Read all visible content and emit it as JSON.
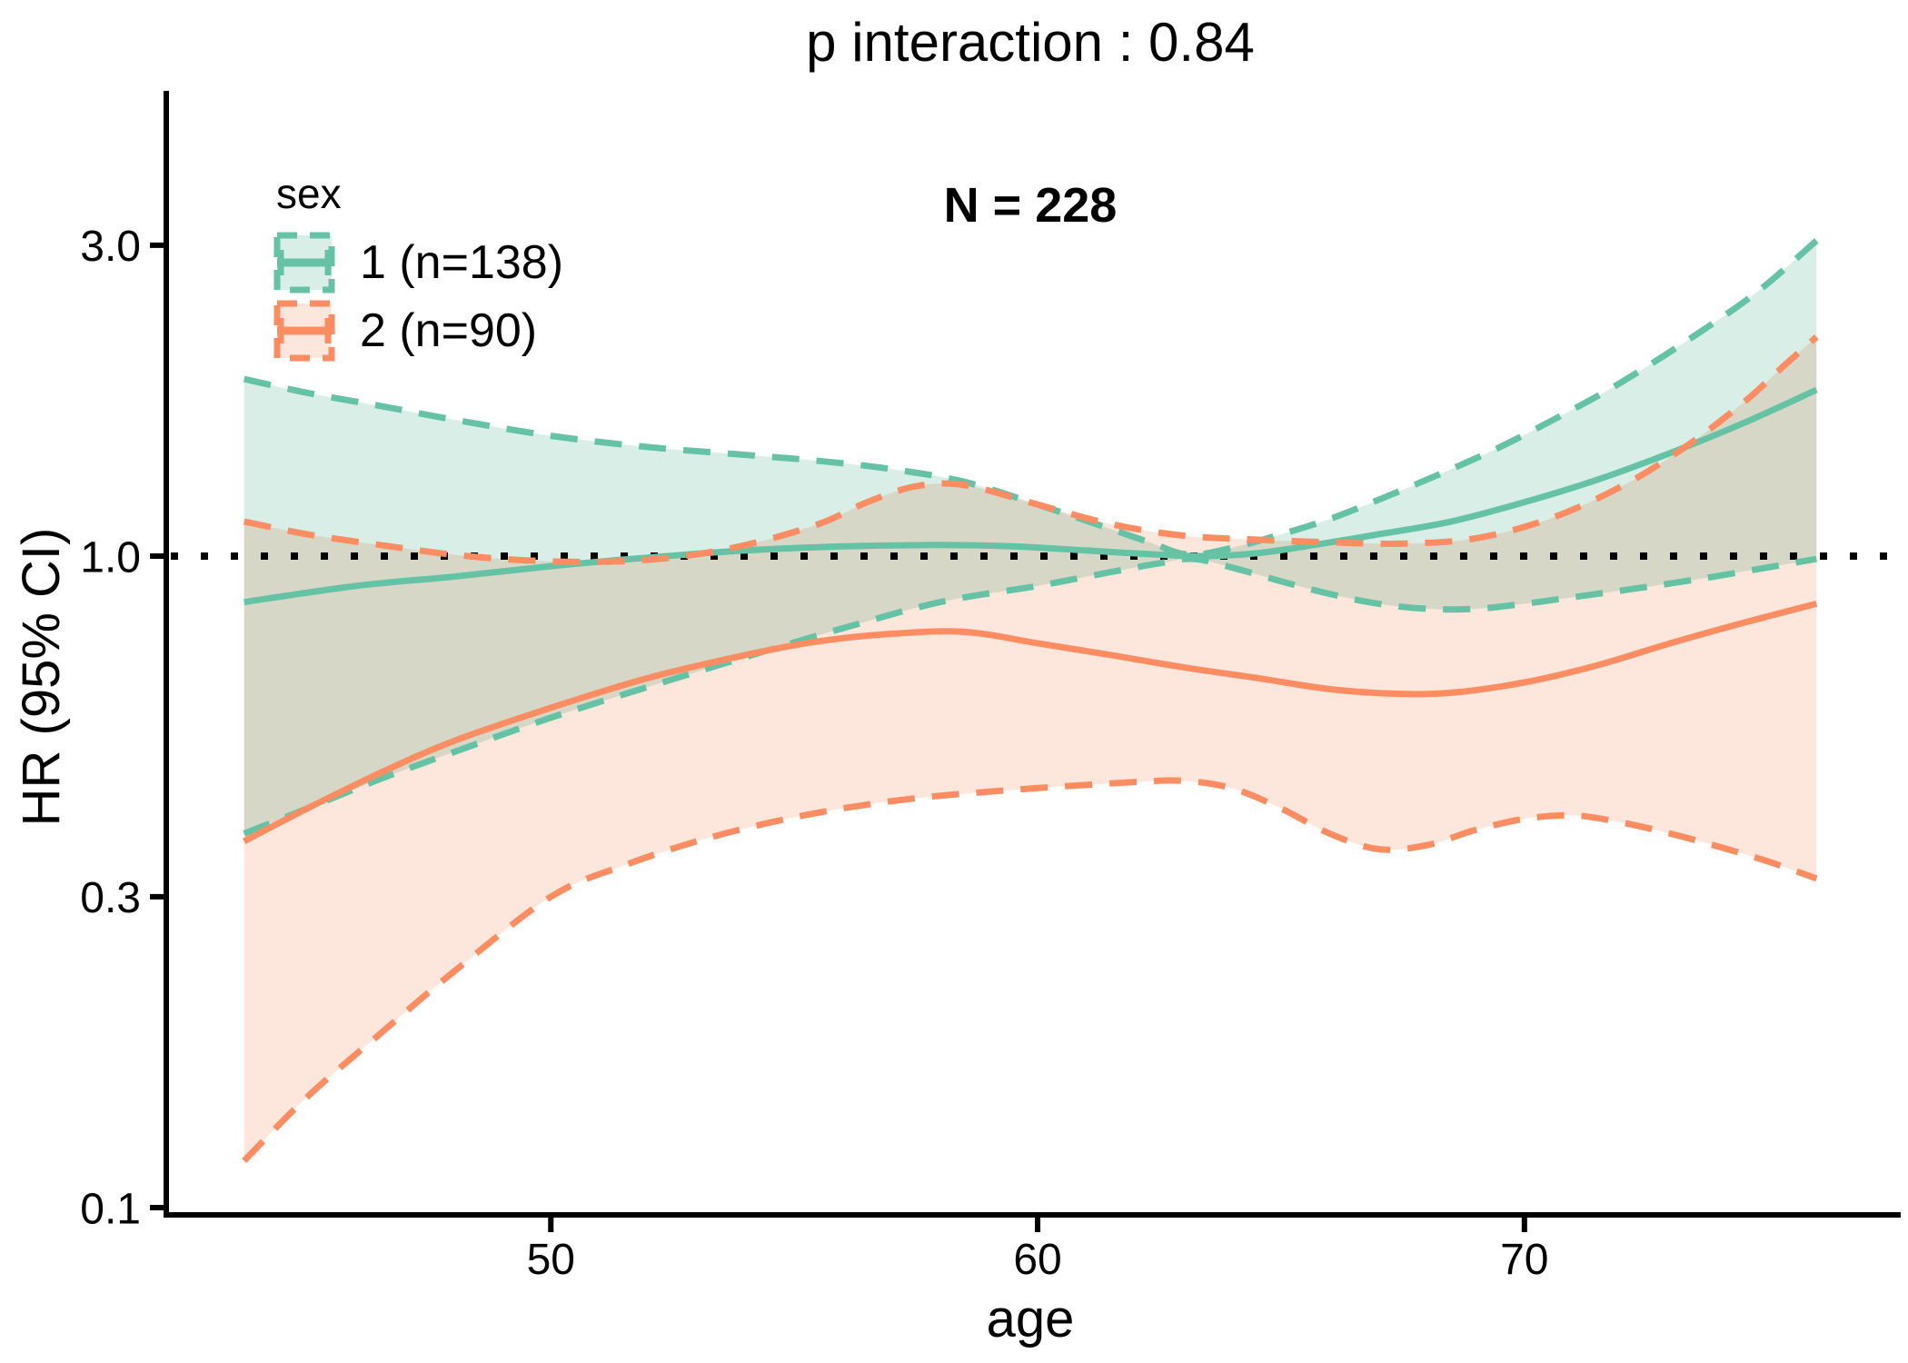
{
  "chart_data": {
    "type": "line",
    "title": "p interaction : 0.84",
    "annotation": "N = 228",
    "xlabel": "age",
    "ylabel": "HR (95% CI)",
    "y_scale": "log10",
    "grid": "off",
    "x_panel_range": [
      42.1,
      77.6
    ],
    "y_panel_range": [
      0.0975,
      5.13
    ],
    "x_data_range": [
      43.7,
      76.0
    ],
    "reference_line_y": 1.0,
    "reference_line_color": "#000000",
    "axis_color": "#000000",
    "x_ticks": [
      {
        "label": "50",
        "value": 50
      },
      {
        "label": "60",
        "value": 60
      },
      {
        "label": "70",
        "value": 70
      }
    ],
    "y_ticks": [
      {
        "label": "3.0",
        "value": 3.0
      },
      {
        "label": "1.0",
        "value": 1.0
      },
      {
        "label": "0.3",
        "value": 0.3
      },
      {
        "label": "0.1",
        "value": 0.1
      }
    ],
    "legend": {
      "title": "sex",
      "position": "top-left-inside",
      "entries": [
        {
          "label": "1 (n=138)",
          "n": 138,
          "color": "#66C2A5",
          "fill": "#D9EEE6"
        },
        {
          "label": "2 (n=90)",
          "n": 90,
          "color": "#FC8D62",
          "fill": "#FDE7DD"
        }
      ]
    },
    "series": [
      {
        "name": "1 (n=138)",
        "group": "sex=1",
        "color": "#66C2A5",
        "fill": "#D9EEE6",
        "fit": [
          [
            43.7,
            0.85
          ],
          [
            46,
            0.9
          ],
          [
            48,
            0.93
          ],
          [
            50,
            0.965
          ],
          [
            52,
            0.995
          ],
          [
            54,
            1.02
          ],
          [
            56,
            1.035
          ],
          [
            58,
            1.04
          ],
          [
            59.5,
            1.035
          ],
          [
            61,
            1.02
          ],
          [
            62.5,
            1.005
          ],
          [
            63.5,
            1.0
          ],
          [
            64.5,
            1.01
          ],
          [
            65.5,
            1.035
          ],
          [
            67,
            1.08
          ],
          [
            68.5,
            1.13
          ],
          [
            70,
            1.21
          ],
          [
            71.5,
            1.31
          ],
          [
            73,
            1.44
          ],
          [
            74.5,
            1.6
          ],
          [
            76,
            1.8
          ]
        ],
        "upper": [
          [
            43.7,
            1.87
          ],
          [
            45,
            1.78
          ],
          [
            46.5,
            1.7
          ],
          [
            48,
            1.62
          ],
          [
            50,
            1.53
          ],
          [
            52,
            1.47
          ],
          [
            54,
            1.43
          ],
          [
            55.5,
            1.4
          ],
          [
            57,
            1.36
          ],
          [
            58.5,
            1.3
          ],
          [
            60,
            1.2
          ],
          [
            61.2,
            1.12
          ],
          [
            62.3,
            1.05
          ],
          [
            63.1,
            1.005
          ],
          [
            64,
            1.03
          ],
          [
            65,
            1.08
          ],
          [
            66,
            1.14
          ],
          [
            67,
            1.22
          ],
          [
            68.2,
            1.33
          ],
          [
            69.5,
            1.47
          ],
          [
            70.8,
            1.65
          ],
          [
            72,
            1.85
          ],
          [
            73.5,
            2.18
          ],
          [
            74.8,
            2.55
          ],
          [
            76,
            3.05
          ]
        ],
        "lower": [
          [
            43.7,
            0.375
          ],
          [
            45,
            0.41
          ],
          [
            46.5,
            0.455
          ],
          [
            48,
            0.5
          ],
          [
            50,
            0.565
          ],
          [
            52,
            0.63
          ],
          [
            54,
            0.7
          ],
          [
            56,
            0.775
          ],
          [
            58,
            0.85
          ],
          [
            60,
            0.9
          ],
          [
            61.5,
            0.945
          ],
          [
            62.5,
            0.975
          ],
          [
            63.2,
            0.99
          ],
          [
            64,
            0.96
          ],
          [
            65,
            0.915
          ],
          [
            66,
            0.875
          ],
          [
            67,
            0.845
          ],
          [
            68,
            0.83
          ],
          [
            69,
            0.83
          ],
          [
            70,
            0.845
          ],
          [
            71,
            0.865
          ],
          [
            72.2,
            0.89
          ],
          [
            73.5,
            0.92
          ],
          [
            74.8,
            0.955
          ],
          [
            76,
            0.99
          ]
        ]
      },
      {
        "name": "2 (n=90)",
        "group": "sex=2",
        "color": "#FC8D62",
        "fill": "#FDE7DD",
        "fit": [
          [
            43.7,
            0.365
          ],
          [
            45,
            0.41
          ],
          [
            46.5,
            0.465
          ],
          [
            48,
            0.52
          ],
          [
            50,
            0.585
          ],
          [
            52,
            0.65
          ],
          [
            54,
            0.705
          ],
          [
            55.5,
            0.74
          ],
          [
            57,
            0.76
          ],
          [
            58.5,
            0.765
          ],
          [
            60,
            0.735
          ],
          [
            61.5,
            0.705
          ],
          [
            63,
            0.675
          ],
          [
            64.5,
            0.65
          ],
          [
            66,
            0.625
          ],
          [
            67.3,
            0.615
          ],
          [
            68.5,
            0.617
          ],
          [
            70,
            0.64
          ],
          [
            71.5,
            0.68
          ],
          [
            73,
            0.735
          ],
          [
            74.5,
            0.79
          ],
          [
            76,
            0.845
          ]
        ],
        "upper": [
          [
            43.7,
            1.13
          ],
          [
            45,
            1.08
          ],
          [
            46.5,
            1.04
          ],
          [
            48,
            1.005
          ],
          [
            49.5,
            0.985
          ],
          [
            51,
            0.98
          ],
          [
            52.5,
            0.995
          ],
          [
            54,
            1.04
          ],
          [
            55.5,
            1.12
          ],
          [
            56.5,
            1.21
          ],
          [
            57.5,
            1.28
          ],
          [
            58.5,
            1.285
          ],
          [
            60,
            1.2
          ],
          [
            61.5,
            1.12
          ],
          [
            63,
            1.075
          ],
          [
            64.5,
            1.06
          ],
          [
            66,
            1.05
          ],
          [
            67.5,
            1.045
          ],
          [
            69,
            1.065
          ],
          [
            70.5,
            1.14
          ],
          [
            72,
            1.28
          ],
          [
            73.3,
            1.47
          ],
          [
            74.5,
            1.72
          ],
          [
            75.3,
            1.95
          ],
          [
            76,
            2.17
          ]
        ],
        "lower": [
          [
            43.7,
            0.118
          ],
          [
            45,
            0.148
          ],
          [
            46.5,
            0.185
          ],
          [
            48,
            0.23
          ],
          [
            50,
            0.3
          ],
          [
            51.5,
            0.335
          ],
          [
            53,
            0.365
          ],
          [
            54.5,
            0.39
          ],
          [
            56,
            0.41
          ],
          [
            57.5,
            0.425
          ],
          [
            59,
            0.435
          ],
          [
            60.5,
            0.443
          ],
          [
            62,
            0.45
          ],
          [
            63,
            0.452
          ],
          [
            64,
            0.44
          ],
          [
            65,
            0.41
          ],
          [
            66,
            0.375
          ],
          [
            67,
            0.355
          ],
          [
            68,
            0.36
          ],
          [
            69,
            0.38
          ],
          [
            70,
            0.395
          ],
          [
            71,
            0.4
          ],
          [
            72,
            0.39
          ],
          [
            73,
            0.375
          ],
          [
            74,
            0.358
          ],
          [
            75,
            0.34
          ],
          [
            76,
            0.32
          ]
        ]
      }
    ]
  }
}
